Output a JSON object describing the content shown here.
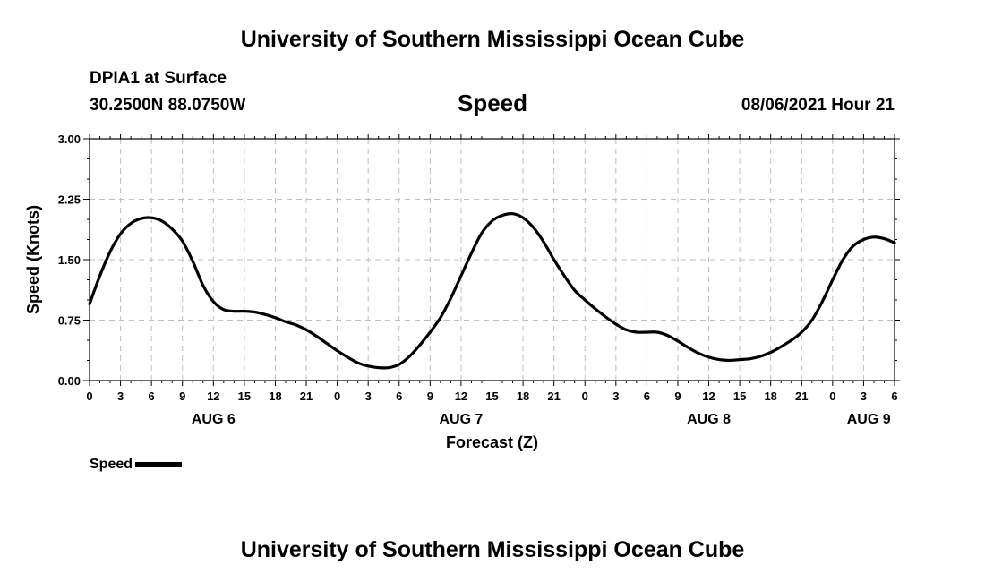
{
  "header": {
    "title": "University of Southern Mississippi Ocean Cube",
    "station": "DPIA1 at Surface",
    "coords": "30.2500N  88.0750W",
    "variable": "Speed",
    "datetime": "08/06/2021 Hour 21",
    "footer_title": "University of Southern Mississippi Ocean Cube"
  },
  "legend": {
    "label": "Speed"
  },
  "colors": {
    "line": "#000000",
    "grid": "#bdbdbd",
    "background": "#ffffff"
  },
  "chart_data": {
    "type": "line",
    "title": "Speed",
    "xlabel": "Forecast (Z)",
    "ylabel": "Speed (Knots)",
    "ylim": [
      0,
      3
    ],
    "yticks": [
      "0.00",
      "0.75",
      "1.50",
      "2.25",
      "3.00"
    ],
    "xlim": [
      0,
      78
    ],
    "x_tick_labels": [
      "0",
      "3",
      "6",
      "9",
      "12",
      "15",
      "18",
      "21",
      "0",
      "3",
      "6",
      "9",
      "12",
      "15",
      "18",
      "21",
      "0",
      "3",
      "6",
      "9",
      "12",
      "15",
      "18",
      "21",
      "0",
      "3",
      "6"
    ],
    "day_labels": [
      {
        "label": "AUG 6",
        "x": 12
      },
      {
        "label": "AUG 7",
        "x": 36
      },
      {
        "label": "AUG 8",
        "x": 60
      },
      {
        "label": "AUG 9",
        "x": 75.5
      }
    ],
    "grid": true,
    "series": [
      {
        "name": "Speed",
        "x": [
          0,
          1,
          2,
          3,
          4,
          5,
          6,
          7,
          8,
          9,
          10,
          11,
          12,
          13,
          14,
          15,
          16,
          17,
          18,
          19,
          20,
          21,
          22,
          23,
          24,
          25,
          26,
          27,
          28,
          29,
          30,
          31,
          32,
          33,
          34,
          35,
          36,
          37,
          38,
          39,
          40,
          41,
          42,
          43,
          44,
          45,
          46,
          47,
          48,
          49,
          50,
          51,
          52,
          53,
          54,
          55,
          56,
          57,
          58,
          59,
          60,
          61,
          62,
          63,
          64,
          65,
          66,
          67,
          68,
          69,
          70,
          71,
          72,
          73,
          74,
          75,
          76,
          77,
          78
        ],
        "values": [
          0.95,
          1.3,
          1.6,
          1.82,
          1.95,
          2.01,
          2.02,
          1.98,
          1.88,
          1.73,
          1.48,
          1.18,
          0.98,
          0.88,
          0.86,
          0.86,
          0.85,
          0.82,
          0.78,
          0.73,
          0.69,
          0.63,
          0.55,
          0.46,
          0.37,
          0.29,
          0.22,
          0.18,
          0.16,
          0.16,
          0.2,
          0.3,
          0.44,
          0.6,
          0.78,
          1.02,
          1.3,
          1.58,
          1.83,
          1.98,
          2.05,
          2.07,
          2.02,
          1.9,
          1.72,
          1.5,
          1.3,
          1.12,
          1.0,
          0.89,
          0.79,
          0.7,
          0.63,
          0.6,
          0.6,
          0.6,
          0.56,
          0.49,
          0.41,
          0.34,
          0.29,
          0.26,
          0.25,
          0.26,
          0.27,
          0.3,
          0.35,
          0.42,
          0.5,
          0.6,
          0.75,
          0.98,
          1.25,
          1.5,
          1.67,
          1.75,
          1.78,
          1.76,
          1.71
        ]
      }
    ]
  }
}
